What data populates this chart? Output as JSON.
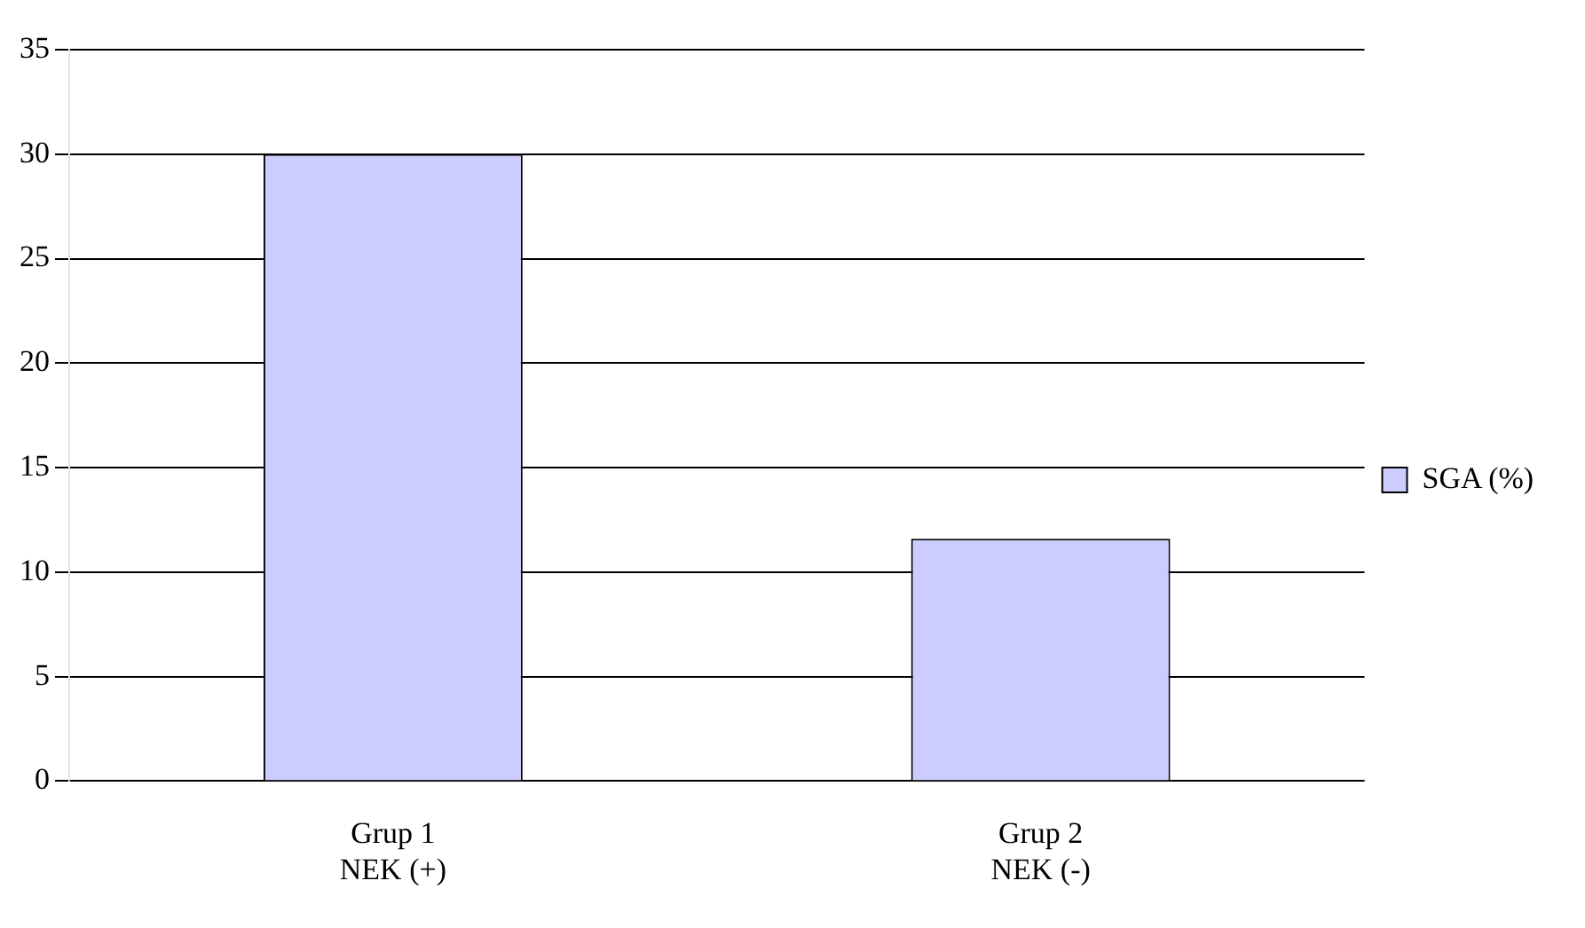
{
  "chart_data": {
    "type": "bar",
    "categories": [
      "Grup 1\nNEK (+)",
      "Grup 2\nNEK (-)"
    ],
    "series": [
      {
        "name": "SGA (%)",
        "color": "#ccccff",
        "values": [
          30,
          11.6
        ]
      }
    ],
    "ylim": [
      0,
      35
    ],
    "yticks": [
      0,
      5,
      10,
      15,
      20,
      25,
      30,
      35
    ],
    "grid": "y",
    "legend": "right"
  }
}
